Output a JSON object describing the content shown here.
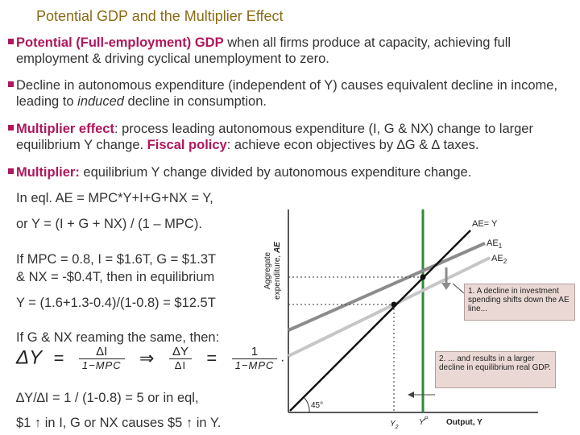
{
  "title": "Potential GDP and the Multiplier Effect",
  "p1": {
    "kw": "Potential (Full-employment) GDP",
    "text": " when all firms produce at capacity, achieving full employment & driving cyclical unemployment to zero."
  },
  "p2": {
    "a": "Decline in autonomous expenditure (independent of Y) causes equivalent decline in income, leading to ",
    "em": "induced",
    "b": " decline in consumption."
  },
  "p3": {
    "kw1": "Multiplier effect",
    "a": ": process leading autonomous expenditure (I, G & NX) change to larger equilibrium Y change. ",
    "kw2": "Fiscal policy",
    "b": ": achieve econ objectives by ∆G & ∆ taxes."
  },
  "p4": {
    "kw": "Multiplier:",
    "text": " equilibrium Y change divided by autonomous expenditure change."
  },
  "eq1": "In eql.  AE = MPC*Y+I+G+NX = Y,",
  "eq2": "or   Y = (I + G + NX) / (1 – MPC).",
  "ex1": "If MPC = 0.8, I = $1.6T, G = $1.3T",
  "ex2": "& NX = -$0.4T, then in equilibrium",
  "ex3": "Y = (1.6+1.3-0.4)/(1-0.8) = $12.5T",
  "same": "If G & NX reaming the same, then:",
  "formula": {
    "lhs": "ΔY",
    "eq": "=",
    "f1_num": "ΔI",
    "f1_den": "1−MPC",
    "implies": "⇒",
    "f2_num": "ΔY",
    "f2_den": "ΔI",
    "eq2": "=",
    "f3_num": "1",
    "f3_den": "1−MPC",
    "dot": "."
  },
  "ratio": "∆Y/∆I = 1 / (1-0.8) = 5    or   in eql,",
  "final": "$1 ↑ in I, G or NX causes $5 ↑ in Y.",
  "graph": {
    "ylabel1": "Aggregate",
    "ylabel2": "expenditure, ",
    "ylabel_em": "AE",
    "line_ae_y": "AE= Y",
    "line_ae1": "AE",
    "line_ae1_sub": "1",
    "line_ae2": "AE",
    "line_ae2_sub": "2",
    "angle": "45°",
    "xlabel": "Output, Y",
    "tick_y2": "Y",
    "tick_y2_sub": "2",
    "tick_yp": "Y",
    "tick_yp_sup": "P",
    "note1": "1. A decline in investment spending shifts down the AE line...",
    "note2": "2. ... and results in a larger decline in equilibrium real GDP.",
    "colors": {
      "green": "#2e8b3a",
      "ae1": "#8c8c8c",
      "ae2": "#c6c6c6",
      "note_bg": "#e9d8d4"
    }
  }
}
